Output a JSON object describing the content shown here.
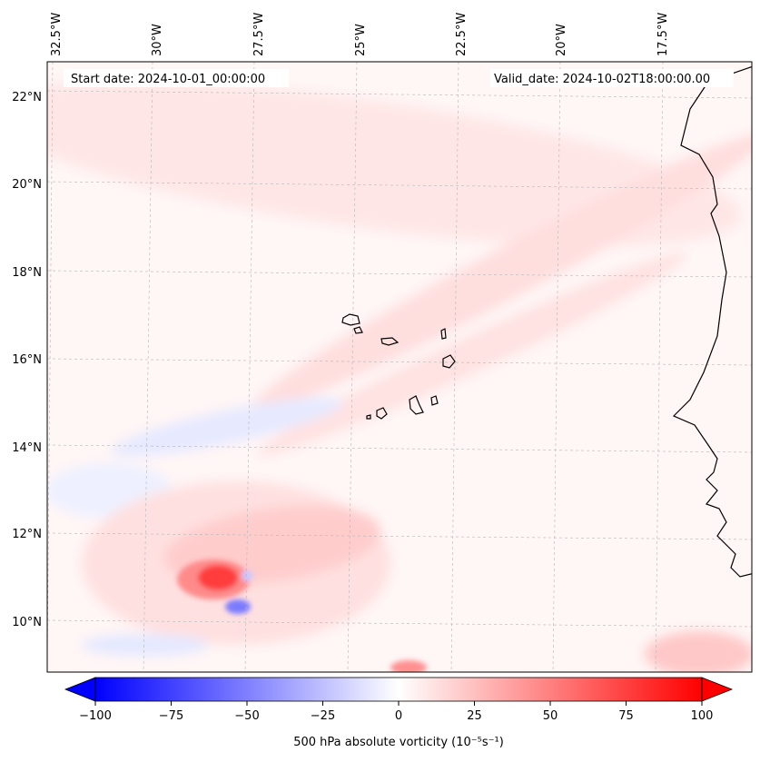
{
  "map": {
    "header_left": "Start date: 2024-10-01_00:00:00",
    "header_right": "Valid_date: 2024-10-02T18:00:00.00",
    "lon_labels": [
      "32.5°W",
      "30°W",
      "27.5°W",
      "25°W",
      "22.5°W",
      "20°W",
      "17.5°W"
    ],
    "lat_labels": [
      "22°N",
      "20°N",
      "18°N",
      "16°N",
      "14°N",
      "12°N",
      "10°N"
    ],
    "field": "500 hPa absolute vorticity",
    "units_note": "10^-5 s^-1"
  },
  "colorbar": {
    "label": "500 hPa absolute vorticity (10⁻⁵s⁻¹)",
    "ticks": [
      "−100",
      "−75",
      "−50",
      "−25",
      "0",
      "25",
      "50",
      "75",
      "100"
    ],
    "min": -100,
    "max": 100,
    "colors": {
      "negative": "#0000ff",
      "zero": "#ffffff",
      "positive": "#ff0000"
    }
  }
}
